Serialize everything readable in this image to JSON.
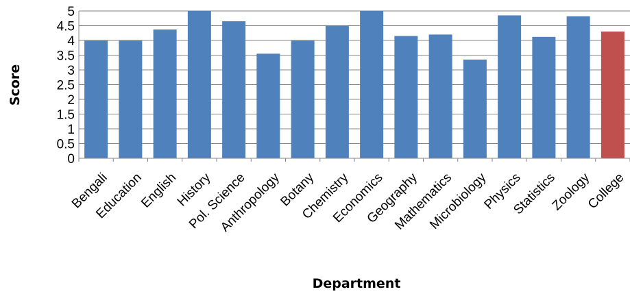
{
  "chart_data": {
    "type": "bar",
    "title": "",
    "xlabel": "Department",
    "ylabel": "Score",
    "ylim": [
      0,
      5
    ],
    "yticks": [
      "0",
      "0.5",
      "1",
      "1.5",
      "2",
      "2.5",
      "3",
      "3.5",
      "4",
      "4.5",
      "5"
    ],
    "grid": true,
    "legend": "none",
    "categories": [
      "Bengali",
      "Education",
      "English",
      "History",
      "Pol. Science",
      "Anthropology",
      "Botany",
      "Chemistry",
      "Economics",
      "Geography",
      "Mathematics",
      "Microbiology",
      "Physics",
      "Statistics",
      "Zoology",
      "College"
    ],
    "values": [
      4.0,
      4.0,
      4.37,
      5.0,
      4.65,
      3.55,
      4.0,
      4.5,
      5.0,
      4.15,
      4.2,
      3.35,
      4.85,
      4.12,
      4.82,
      4.3
    ],
    "colors": {
      "department": "#4F81BD",
      "college": "#C0504D",
      "gridline": "#868686",
      "axis": "#868686"
    }
  }
}
